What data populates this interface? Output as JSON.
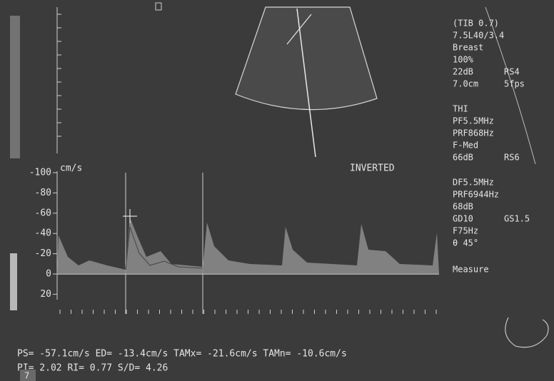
{
  "settings_groups": [
    [
      [
        "(TIB 0.7)"
      ],
      [
        "7.5L40/3.4"
      ],
      [
        "Breast"
      ],
      [
        "100%"
      ],
      [
        "22dB",
        "RS4"
      ],
      [
        "7.0cm",
        "5fps"
      ]
    ],
    [
      [
        "THI"
      ],
      [
        "PF5.5MHz"
      ],
      [
        "PRF868Hz"
      ],
      [
        "F-Med"
      ],
      [
        "66dB",
        "RS6"
      ]
    ],
    [
      [
        "DF5.5MHz"
      ],
      [
        "PRF6944Hz"
      ],
      [
        "68dB"
      ],
      [
        "GD10",
        "GS1.5"
      ],
      [
        "F75Hz"
      ],
      [
        "θ 45°"
      ]
    ],
    [
      [
        "Measure"
      ]
    ]
  ],
  "doppler_axis": {
    "unit": "cm/s",
    "ticks": [
      -100,
      -80,
      -60,
      -40,
      -20,
      0,
      20
    ]
  },
  "mode_label": "INVERTED",
  "measurements": [
    "PS= -57.1cm/s ED= -13.4cm/s TAMx= -21.6cm/s TAMn= -10.6cm/s",
    "PI= 2.02 RI= 0.77 S/D= 4.26"
  ],
  "page_marker": "7"
}
